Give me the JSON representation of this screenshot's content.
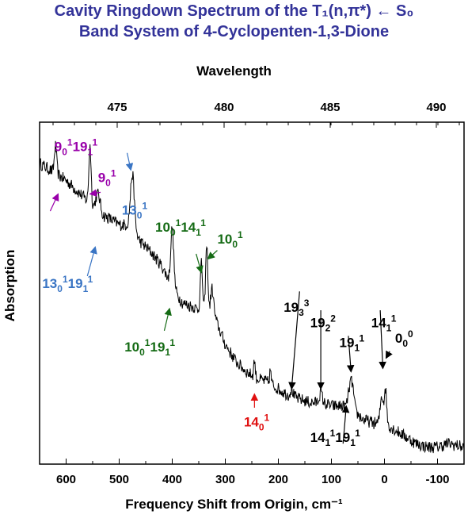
{
  "title_line1": "Cavity Ringdown Spectrum of the T₁(n,π*) ← S₀",
  "title_line2": "Band System of 4-Cyclopenten-1,3-Dione",
  "chart_data": {
    "type": "line",
    "xlabel": "Frequency Shift from Origin, cm⁻¹",
    "ylabel": "Absorption",
    "top_xlabel": "Wavelength",
    "xlim": [
      650,
      -150
    ],
    "x_ticks": [
      600,
      500,
      400,
      300,
      200,
      100,
      0,
      -100
    ],
    "x_tick_labels": [
      "600",
      "500",
      "400",
      "300",
      "200",
      "100",
      "0",
      "-100"
    ],
    "top_ticks": [
      475,
      480,
      485,
      490
    ],
    "top_tick_labels": [
      "475",
      "480",
      "485",
      "490"
    ],
    "y_ticks_labeled": false,
    "series_color": "#000000",
    "baseline_points": [
      [
        650,
        0.88
      ],
      [
        620,
        0.85
      ],
      [
        600,
        0.83
      ],
      [
        580,
        0.8
      ],
      [
        560,
        0.77
      ],
      [
        540,
        0.73
      ],
      [
        520,
        0.72
      ],
      [
        500,
        0.7
      ],
      [
        480,
        0.7
      ],
      [
        460,
        0.65
      ],
      [
        440,
        0.62
      ],
      [
        420,
        0.58
      ],
      [
        400,
        0.52
      ],
      [
        380,
        0.47
      ],
      [
        360,
        0.46
      ],
      [
        340,
        0.44
      ],
      [
        320,
        0.43
      ],
      [
        300,
        0.35
      ],
      [
        280,
        0.3
      ],
      [
        260,
        0.27
      ],
      [
        240,
        0.25
      ],
      [
        220,
        0.24
      ],
      [
        200,
        0.22
      ],
      [
        180,
        0.2
      ],
      [
        160,
        0.19
      ],
      [
        140,
        0.18
      ],
      [
        120,
        0.18
      ],
      [
        100,
        0.17
      ],
      [
        80,
        0.17
      ],
      [
        60,
        0.16
      ],
      [
        40,
        0.13
      ],
      [
        20,
        0.12
      ],
      [
        0,
        0.12
      ],
      [
        -20,
        0.1
      ],
      [
        -40,
        0.08
      ],
      [
        -60,
        0.06
      ],
      [
        -80,
        0.05
      ],
      [
        -100,
        0.05
      ],
      [
        -120,
        0.06
      ],
      [
        -150,
        0.05
      ]
    ],
    "peaks": [
      {
        "x": 620,
        "height": 0.08,
        "width": 3
      },
      {
        "x": 555,
        "height": 0.17,
        "width": 3
      },
      {
        "x": 540,
        "height": 0.06,
        "width": 6
      },
      {
        "x": 475,
        "height": 0.16,
        "width": 5
      },
      {
        "x": 400,
        "height": 0.17,
        "width": 4
      },
      {
        "x": 345,
        "height": 0.14,
        "width": 3
      },
      {
        "x": 335,
        "height": 0.2,
        "width": 3
      },
      {
        "x": 325,
        "height": 0.08,
        "width": 4
      },
      {
        "x": 245,
        "height": 0.05,
        "width": 2
      },
      {
        "x": 215,
        "height": 0.04,
        "width": 2
      },
      {
        "x": 175,
        "height": 0.02,
        "width": 4
      },
      {
        "x": 120,
        "height": 0.03,
        "width": 4
      },
      {
        "x": 65,
        "height": 0.06,
        "width": 5
      },
      {
        "x": 60,
        "height": 0.05,
        "width": 4
      },
      {
        "x": 5,
        "height": 0.08,
        "width": 4
      },
      {
        "x": -2,
        "height": 0.1,
        "width": 3
      }
    ],
    "noise_amplitude": 0.018
  },
  "annotations": [
    {
      "id": "a-9-19",
      "main": "9",
      "sub": "0",
      "sup": "1",
      "main2": "19",
      "sub2": "1",
      "sup2": "1",
      "color": "#9900aa",
      "tx": 622,
      "ty_frac": 0.085,
      "arrow_to": [
        615,
        0.79
      ],
      "arrow_from": [
        630,
        0.74
      ]
    },
    {
      "id": "a-9",
      "main": "9",
      "sub": "0",
      "sup": "1",
      "color": "#9900aa",
      "tx": 540,
      "ty_frac": 0.175,
      "arrow_to": [
        555,
        0.79
      ],
      "arrow_from": [
        535,
        0.795
      ]
    },
    {
      "id": "a-13",
      "main": "13",
      "sub": "0",
      "sup": "1",
      "color": "#3a75c4",
      "tx": 495,
      "ty_frac": 0.27,
      "arrow_to": [
        478,
        0.86
      ],
      "arrow_from": [
        485,
        0.91
      ]
    },
    {
      "id": "a-13-19",
      "main": "13",
      "sub": "0",
      "sup": "1",
      "main2": "19",
      "sub2": "1",
      "sup2": "1",
      "color": "#3a75c4",
      "tx": 645,
      "ty_frac": 0.485,
      "arrow_to": [
        545,
        0.635
      ],
      "arrow_from": [
        560,
        0.55
      ]
    },
    {
      "id": "a-10-14",
      "main": "10",
      "sub": "0",
      "sup": "1",
      "main2": "14",
      "sub2": "1",
      "sup2": "1",
      "color": "#156b15",
      "tx": 432,
      "ty_frac": 0.32,
      "arrow_to": [
        345,
        0.56
      ],
      "arrow_from": [
        355,
        0.615
      ]
    },
    {
      "id": "a-10",
      "main": "10",
      "sub": "0",
      "sup": "1",
      "color": "#156b15",
      "tx": 315,
      "ty_frac": 0.355,
      "arrow_to": [
        333,
        0.6
      ],
      "arrow_from": [
        315,
        0.625
      ]
    },
    {
      "id": "a-10-19",
      "main": "10",
      "sub": "0",
      "sup": "1",
      "main2": "19",
      "sub2": "1",
      "sup2": "1",
      "color": "#156b15",
      "tx": 490,
      "ty_frac": 0.67,
      "arrow_to": [
        405,
        0.455
      ],
      "arrow_from": [
        415,
        0.39
      ]
    },
    {
      "id": "a-19-3",
      "main": "19",
      "sub": "3",
      "sup": "3",
      "color": "#000000",
      "tx": 190,
      "ty_frac": 0.555,
      "arrow_to": [
        175,
        0.22
      ],
      "arrow_from": [
        160,
        0.505
      ]
    },
    {
      "id": "a-19-2",
      "main": "19",
      "sub": "2",
      "sup": "2",
      "color": "#000000",
      "tx": 140,
      "ty_frac": 0.6,
      "arrow_to": [
        120,
        0.22
      ],
      "arrow_from": [
        120,
        0.45
      ]
    },
    {
      "id": "a-19-1",
      "main": "19",
      "sub": "1",
      "sup": "1",
      "color": "#000000",
      "tx": 85,
      "ty_frac": 0.658,
      "arrow_to": [
        63,
        0.27
      ],
      "arrow_from": [
        68,
        0.375
      ]
    },
    {
      "id": "a-14",
      "main": "14",
      "sub": "1",
      "sup": "1",
      "color": "#000000",
      "tx": 25,
      "ty_frac": 0.6,
      "arrow_to": [
        3,
        0.28
      ],
      "arrow_from": [
        8,
        0.45
      ]
    },
    {
      "id": "a-00",
      "main": "0",
      "sub": "0",
      "sup": "0",
      "color": "#000000",
      "tx": -20,
      "ty_frac": 0.645,
      "arrow_to": [
        -3,
        0.31
      ],
      "arrow_from": [
        -10,
        0.33
      ]
    },
    {
      "id": "a-14-19",
      "main": "14",
      "sub": "1",
      "sup": "1",
      "main2": "19",
      "sub2": "1",
      "sup2": "1",
      "color": "#000000",
      "tx": 140,
      "ty_frac": 0.935,
      "arrow_to": [
        72,
        0.17
      ],
      "arrow_from": [
        78,
        0.06
      ]
    },
    {
      "id": "a-14-0",
      "main": "14",
      "sub": "0",
      "sup": "1",
      "color": "#e01010",
      "tx": 265,
      "ty_frac": 0.89,
      "arrow_to": [
        245,
        0.205
      ],
      "arrow_from": [
        245,
        0.165
      ]
    }
  ]
}
